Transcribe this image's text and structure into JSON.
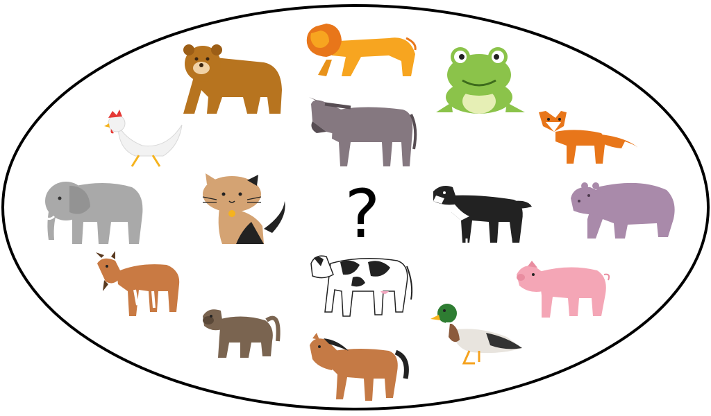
{
  "center_symbol": "?",
  "colors": {
    "outline": "#000000",
    "background": "#ffffff"
  },
  "animals": [
    {
      "name": "lion",
      "icon": "lion-icon"
    },
    {
      "name": "bear",
      "icon": "bear-icon"
    },
    {
      "name": "frog",
      "icon": "frog-icon"
    },
    {
      "name": "donkey",
      "icon": "donkey-icon"
    },
    {
      "name": "chicken",
      "icon": "chicken-icon"
    },
    {
      "name": "fox",
      "icon": "fox-icon"
    },
    {
      "name": "elephant",
      "icon": "elephant-icon"
    },
    {
      "name": "cat",
      "icon": "cat-icon"
    },
    {
      "name": "dog",
      "icon": "dog-icon"
    },
    {
      "name": "hippo",
      "icon": "hippo-icon"
    },
    {
      "name": "goat",
      "icon": "goat-icon"
    },
    {
      "name": "cow",
      "icon": "cow-icon"
    },
    {
      "name": "pig",
      "icon": "pig-icon"
    },
    {
      "name": "monkey",
      "icon": "monkey-icon"
    },
    {
      "name": "duck",
      "icon": "duck-icon"
    },
    {
      "name": "horse",
      "icon": "horse-icon"
    }
  ]
}
